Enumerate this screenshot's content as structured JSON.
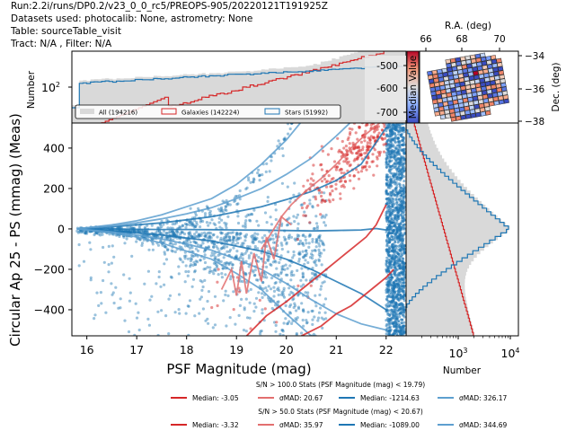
{
  "header": {
    "lines": [
      "Run:2.2i/runs/DP0.2/v23_0_0_rc5/PREOPS-905/20220121T191925Z",
      "Datasets used: photocalib: None, astrometry: None",
      "Table: sourceTable_visit",
      "Tract: N/A , Filter: N/A"
    ]
  },
  "colors": {
    "galaxy": "#d62728",
    "galaxy_light": "#e36f6f",
    "star": "#1f77b4",
    "star_light": "#5d9fcf",
    "hist_all": "#d9d9d9"
  },
  "chart_data": [
    {
      "id": "main-scatter",
      "type": "scatter",
      "xlabel": "PSF Magnitude (mag)",
      "ylabel": "Circular Ap 25 - PS (mmag) (Meas)",
      "xlim": [
        15.7,
        22.4
      ],
      "ylim": [
        -529,
        524
      ],
      "xticks": [
        16,
        17,
        18,
        19,
        20,
        21,
        22
      ],
      "yticks": [
        -400,
        -200,
        0,
        200,
        400
      ],
      "series": [
        {
          "name": "Stars median",
          "class": "star",
          "x": [
            15.8,
            16.5,
            17,
            17.5,
            18,
            18.5,
            19,
            19.5,
            20,
            20.5,
            21,
            21.5,
            21.8,
            22,
            22.1
          ],
          "y": [
            0,
            0,
            -2,
            -3,
            -3,
            -4,
            -5,
            -6,
            -8,
            -10,
            -8,
            -5,
            2,
            -5,
            30
          ]
        },
        {
          "name": "Stars +1 sigma",
          "class": "star",
          "x": [
            15.8,
            16.5,
            17,
            17.5,
            18,
            18.5,
            19,
            19.5,
            20,
            20.5,
            21,
            21.5,
            22
          ],
          "y": [
            0,
            10,
            20,
            30,
            45,
            60,
            85,
            110,
            145,
            185,
            240,
            320,
            500
          ]
        },
        {
          "name": "Stars -1 sigma",
          "class": "star",
          "x": [
            15.8,
            16.5,
            17,
            17.5,
            18,
            18.5,
            19,
            19.5,
            20,
            20.5,
            21,
            21.5,
            22
          ],
          "y": [
            0,
            -10,
            -20,
            -30,
            -45,
            -60,
            -85,
            -110,
            -150,
            -200,
            -260,
            -320,
            -400
          ]
        },
        {
          "name": "Stars +2 sigma",
          "class": "star_light",
          "x": [
            15.8,
            16.5,
            17,
            17.5,
            18,
            18.5,
            19,
            19.5,
            20,
            20.5,
            21,
            21.3
          ],
          "y": [
            0,
            15,
            30,
            50,
            75,
            105,
            150,
            200,
            270,
            350,
            460,
            530
          ]
        },
        {
          "name": "Stars -2 sigma",
          "class": "star_light",
          "x": [
            15.8,
            16.5,
            17,
            17.5,
            18,
            18.5,
            19,
            19.5,
            20,
            20.5,
            21,
            21.5,
            22
          ],
          "y": [
            0,
            -15,
            -30,
            -50,
            -75,
            -105,
            -150,
            -200,
            -270,
            -350,
            -420,
            -470,
            -500
          ]
        },
        {
          "name": "Stars +3 sigma",
          "class": "star_light",
          "x": [
            15.8,
            16.5,
            17,
            17.5,
            18,
            18.5,
            19,
            19.5,
            20,
            20.3
          ],
          "y": [
            0,
            20,
            40,
            70,
            110,
            150,
            220,
            320,
            440,
            530
          ]
        },
        {
          "name": "Stars -3 sigma",
          "class": "star_light",
          "x": [
            15.8,
            16.5,
            17,
            17.5,
            18,
            18.5,
            19,
            19.5,
            20,
            20.5
          ],
          "y": [
            0,
            -20,
            -40,
            -70,
            -110,
            -150,
            -220,
            -300,
            -420,
            -530
          ]
        },
        {
          "name": "Galaxies median",
          "class": "galaxy",
          "x": [
            19.2,
            19.6,
            20,
            20.3,
            20.6,
            21,
            21.3,
            21.6,
            21.8,
            22
          ],
          "y": [
            -530,
            -430,
            -360,
            -300,
            -240,
            -160,
            -100,
            -40,
            20,
            120
          ]
        },
        {
          "name": "Galaxies lower",
          "class": "galaxy",
          "x": [
            20.3,
            20.7,
            21,
            21.3,
            21.6,
            21.8,
            22,
            22.15
          ],
          "y": [
            -530,
            -480,
            -420,
            -380,
            -320,
            -280,
            -240,
            -200
          ]
        },
        {
          "name": "Galaxies upper",
          "class": "galaxy_light",
          "x": [
            19.5,
            19.7,
            19.9,
            20.1,
            20.4,
            20.7,
            21,
            21.3,
            21.6,
            21.9
          ],
          "y": [
            -100,
            -20,
            60,
            120,
            190,
            250,
            320,
            400,
            470,
            530
          ]
        },
        {
          "name": "Galaxies noisy",
          "class": "galaxy_light",
          "x": [
            18.7,
            18.9,
            19.0,
            19.1,
            19.2,
            19.35,
            19.5,
            19.6,
            19.75,
            19.9,
            20.1
          ],
          "y": [
            -300,
            -200,
            -330,
            -160,
            -320,
            -120,
            -260,
            -40,
            -150,
            60,
            20
          ]
        }
      ]
    },
    {
      "id": "top-histogram",
      "type": "bar",
      "ylabel": "Number",
      "yscale": "log",
      "yticks_label": [
        "10^2"
      ],
      "legend": [
        {
          "label": "All (194216)",
          "class": "hist_all"
        },
        {
          "label": "Galaxies (142224)",
          "class": "galaxy"
        },
        {
          "label": "Stars (51992)",
          "class": "star"
        }
      ]
    },
    {
      "id": "right-histogram",
      "type": "bar",
      "xlabel": "Number",
      "xscale": "log",
      "xticks_label": [
        "10^3",
        "10^4"
      ]
    },
    {
      "id": "colorbar",
      "label": "Median Value",
      "ticks": [
        -500,
        -600,
        -700
      ]
    },
    {
      "id": "sky-map",
      "type": "heatmap",
      "xlabel": "R.A. (deg)",
      "ylabel": "Dec. (deg)",
      "xticks": [
        66,
        68,
        70
      ],
      "yticks": [
        -34,
        -36,
        -38
      ]
    }
  ],
  "stats": {
    "sn100_title": "S/N > 100.0 Stats (PSF Magnitude (mag) < 19.79)",
    "sn100": [
      {
        "label": "Median: -3.05",
        "class": "galaxy"
      },
      {
        "label": "σMAD: 20.67",
        "class": "galaxy_light"
      },
      {
        "label": "Median: -1214.63",
        "class": "star"
      },
      {
        "label": "σMAD: 326.17",
        "class": "star_light"
      }
    ],
    "sn50_title": "S/N > 50.0 Stats (PSF Magnitude (mag) < 20.67)",
    "sn50": [
      {
        "label": "Median: -3.32",
        "class": "galaxy"
      },
      {
        "label": "σMAD: 35.97",
        "class": "galaxy_light"
      },
      {
        "label": "Median: -1089.00",
        "class": "star"
      },
      {
        "label": "σMAD: 344.69",
        "class": "star_light"
      }
    ]
  }
}
